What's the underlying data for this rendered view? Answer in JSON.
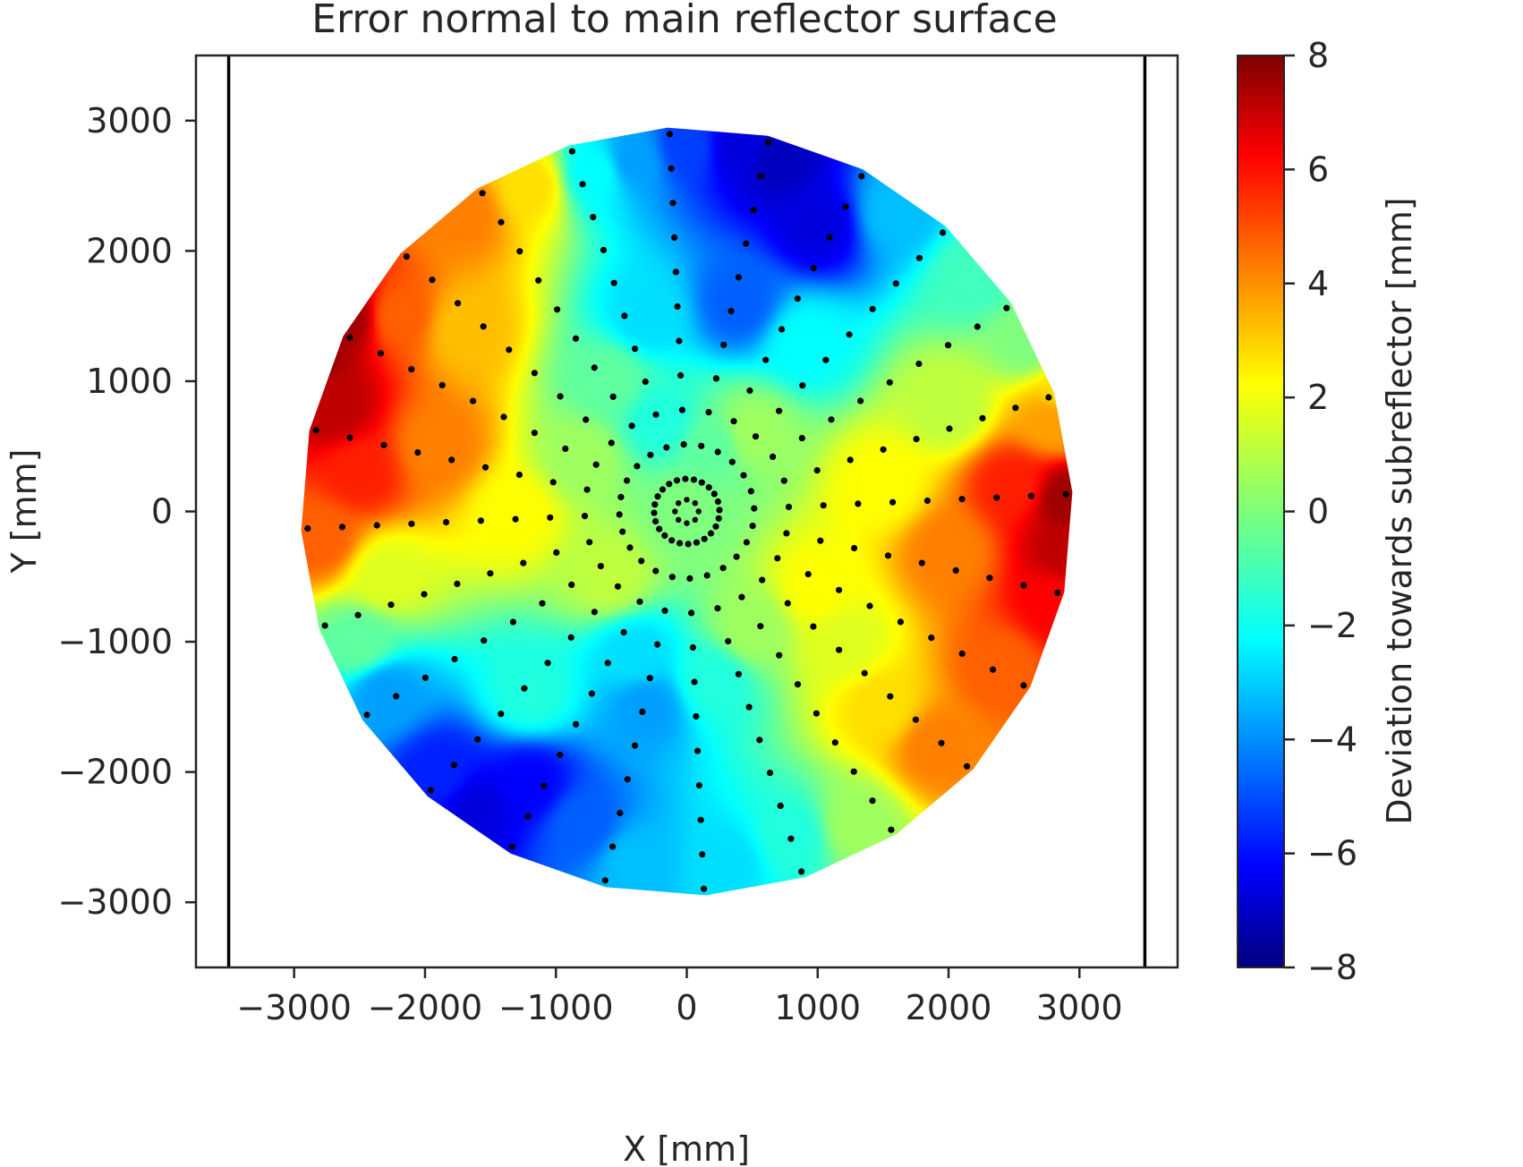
{
  "chart_data": {
    "type": "heatmap",
    "title": "Error normal to main reflector surface",
    "xlabel": "X [mm]",
    "ylabel": "Y [mm]",
    "xlim": [
      -3750,
      3750
    ],
    "ylim": [
      -3500,
      3500
    ],
    "xticks": [
      -3000,
      -2000,
      -1000,
      0,
      1000,
      2000,
      3000
    ],
    "yticks": [
      -3000,
      -2000,
      -1000,
      0,
      1000,
      2000,
      3000
    ],
    "xtick_labels": [
      "−3000",
      "−2000",
      "−1000",
      "0",
      "1000",
      "2000",
      "3000"
    ],
    "ytick_labels": [
      "−3000",
      "−2000",
      "−1000",
      "0",
      "1000",
      "2000",
      "3000"
    ],
    "rim_lines_x": [
      -3500,
      3500
    ],
    "grid": false,
    "colormap": "jet",
    "colorbar": {
      "label": "Deviation towards subreflector [mm]",
      "min": -8,
      "max": 8,
      "ticks": [
        8,
        6,
        4,
        2,
        0,
        -2,
        -4,
        -6,
        -8
      ],
      "tick_labels": [
        "8",
        "6",
        "4",
        "2",
        "0",
        "−2",
        "−4",
        "−6",
        "−8"
      ]
    },
    "dish_radius": 2950,
    "measurement_grid": {
      "rays": 24,
      "points_per_ray": 11,
      "inner_radius": 250,
      "outer_radius": 2900,
      "hub_points": 8,
      "hub_radius": 90
    },
    "surface_features": [
      {
        "x": -2950,
        "y": 1200,
        "value": 8.0
      },
      {
        "x": -2600,
        "y": 1500,
        "value": 7.5
      },
      {
        "x": -2700,
        "y": 800,
        "value": 7.0
      },
      {
        "x": -2200,
        "y": 1500,
        "value": 4.5
      },
      {
        "x": -2500,
        "y": 300,
        "value": 5.5
      },
      {
        "x": -2800,
        "y": -200,
        "value": 4.5
      },
      {
        "x": -1700,
        "y": 2300,
        "value": 4.0
      },
      {
        "x": -1700,
        "y": 1400,
        "value": 3.0
      },
      {
        "x": -1200,
        "y": 2500,
        "value": 2.5
      },
      {
        "x": -1900,
        "y": 500,
        "value": 4.0
      },
      {
        "x": -1300,
        "y": 0,
        "value": 2.0
      },
      {
        "x": -2300,
        "y": -500,
        "value": 1.5
      },
      {
        "x": -2500,
        "y": -1000,
        "value": -0.5
      },
      {
        "x": -2300,
        "y": -1400,
        "value": -3.5
      },
      {
        "x": -1900,
        "y": -2000,
        "value": -5.5
      },
      {
        "x": -1600,
        "y": -2300,
        "value": -6.5
      },
      {
        "x": -1200,
        "y": -2100,
        "value": -6.0
      },
      {
        "x": -800,
        "y": -2400,
        "value": -4.5
      },
      {
        "x": -400,
        "y": -2700,
        "value": -3.0
      },
      {
        "x": -400,
        "y": -1100,
        "value": -2.5
      },
      {
        "x": -300,
        "y": -1500,
        "value": -3.5
      },
      {
        "x": 200,
        "y": -1300,
        "value": -1.5
      },
      {
        "x": 300,
        "y": -2700,
        "value": -2.5
      },
      {
        "x": 800,
        "y": -2500,
        "value": -1.5
      },
      {
        "x": 1300,
        "y": -2400,
        "value": 0.5
      },
      {
        "x": 1500,
        "y": -1500,
        "value": 2.5
      },
      {
        "x": 1900,
        "y": -1800,
        "value": 4.0
      },
      {
        "x": 2400,
        "y": -1200,
        "value": 4.5
      },
      {
        "x": 2800,
        "y": -700,
        "value": 6.0
      },
      {
        "x": 2900,
        "y": -300,
        "value": 7.0
      },
      {
        "x": 2900,
        "y": 100,
        "value": 7.5
      },
      {
        "x": 2500,
        "y": 200,
        "value": 5.5
      },
      {
        "x": 2000,
        "y": -300,
        "value": 4.0
      },
      {
        "x": 2800,
        "y": 700,
        "value": 3.5
      },
      {
        "x": 2900,
        "y": 900,
        "value": 2.5
      },
      {
        "x": 2000,
        "y": 800,
        "value": 1.0
      },
      {
        "x": 1500,
        "y": 200,
        "value": 2.0
      },
      {
        "x": 1000,
        "y": -600,
        "value": 2.0
      },
      {
        "x": 2600,
        "y": 1300,
        "value": 0.0
      },
      {
        "x": 2200,
        "y": 1800,
        "value": -1.0
      },
      {
        "x": 1600,
        "y": 2300,
        "value": -3.0
      },
      {
        "x": 1000,
        "y": 2200,
        "value": -6.5
      },
      {
        "x": 700,
        "y": 2700,
        "value": -7.0
      },
      {
        "x": 400,
        "y": 2800,
        "value": -6.5
      },
      {
        "x": 400,
        "y": 1600,
        "value": -4.5
      },
      {
        "x": 900,
        "y": 1300,
        "value": -2.0
      },
      {
        "x": 0,
        "y": 2800,
        "value": -5.0
      },
      {
        "x": -400,
        "y": 2700,
        "value": -3.5
      },
      {
        "x": -700,
        "y": 2600,
        "value": -2.0
      },
      {
        "x": -300,
        "y": 1500,
        "value": -2.5
      },
      {
        "x": -200,
        "y": 700,
        "value": -1.5
      },
      {
        "x": 200,
        "y": 500,
        "value": -0.5
      },
      {
        "x": -600,
        "y": 1000,
        "value": -0.5
      },
      {
        "x": -800,
        "y": 400,
        "value": 0.5
      },
      {
        "x": 0,
        "y": 0,
        "value": 0.0
      },
      {
        "x": -600,
        "y": -500,
        "value": 1.0
      },
      {
        "x": 500,
        "y": -900,
        "value": 0.5
      },
      {
        "x": 500,
        "y": 600,
        "value": 0.5
      },
      {
        "x": -1200,
        "y": -1400,
        "value": -1.5
      },
      {
        "x": 1200,
        "y": -1000,
        "value": 1.5
      }
    ]
  }
}
